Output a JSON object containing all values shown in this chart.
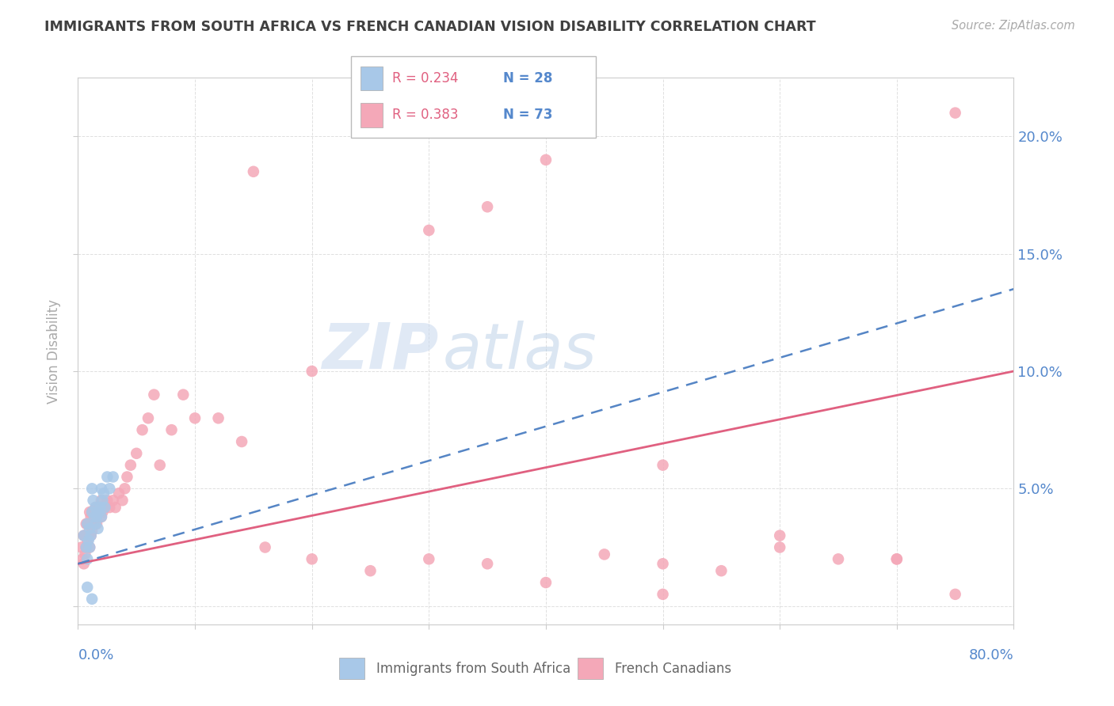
{
  "title": "IMMIGRANTS FROM SOUTH AFRICA VS FRENCH CANADIAN VISION DISABILITY CORRELATION CHART",
  "source": "Source: ZipAtlas.com",
  "ylabel": "Vision Disability",
  "xmin": 0.0,
  "xmax": 0.8,
  "ymin": -0.008,
  "ymax": 0.225,
  "yticks": [
    0.0,
    0.05,
    0.1,
    0.15,
    0.2
  ],
  "ytick_labels": [
    "",
    "5.0%",
    "10.0%",
    "15.0%",
    "20.0%"
  ],
  "legend_1_r": "R = 0.234",
  "legend_1_n": "N = 28",
  "legend_2_r": "R = 0.383",
  "legend_2_n": "N = 73",
  "legend_label_1": "Immigrants from South Africa",
  "legend_label_2": "French Canadians",
  "blue_scatter_color": "#A8C8E8",
  "pink_scatter_color": "#F4A8B8",
  "blue_line_color": "#5585C5",
  "pink_line_color": "#E06080",
  "axis_label_color": "#5588CC",
  "title_color": "#404040",
  "watermark_zip_color": "#C0D4EC",
  "watermark_atlas_color": "#A8C8E4",
  "blue_trend_x0": 0.0,
  "blue_trend_y0": 0.018,
  "blue_trend_x1": 0.8,
  "blue_trend_y1": 0.135,
  "pink_trend_x0": 0.0,
  "pink_trend_y0": 0.018,
  "pink_trend_x1": 0.8,
  "pink_trend_y1": 0.1,
  "blue_x": [
    0.005,
    0.007,
    0.008,
    0.008,
    0.009,
    0.01,
    0.01,
    0.011,
    0.012,
    0.012,
    0.013,
    0.014,
    0.015,
    0.015,
    0.016,
    0.017,
    0.018,
    0.019,
    0.02,
    0.02,
    0.021,
    0.022,
    0.023,
    0.025,
    0.027,
    0.03,
    0.008,
    0.012
  ],
  "blue_y": [
    0.03,
    0.025,
    0.035,
    0.02,
    0.028,
    0.033,
    0.025,
    0.03,
    0.05,
    0.04,
    0.045,
    0.038,
    0.042,
    0.035,
    0.038,
    0.033,
    0.04,
    0.042,
    0.05,
    0.038,
    0.045,
    0.048,
    0.042,
    0.055,
    0.05,
    0.055,
    0.008,
    0.003
  ],
  "pink_x": [
    0.003,
    0.004,
    0.005,
    0.005,
    0.006,
    0.006,
    0.007,
    0.007,
    0.008,
    0.008,
    0.009,
    0.009,
    0.01,
    0.01,
    0.011,
    0.011,
    0.012,
    0.012,
    0.013,
    0.014,
    0.015,
    0.015,
    0.016,
    0.017,
    0.018,
    0.019,
    0.02,
    0.02,
    0.021,
    0.022,
    0.023,
    0.025,
    0.027,
    0.03,
    0.032,
    0.035,
    0.038,
    0.04,
    0.042,
    0.045,
    0.05,
    0.055,
    0.06,
    0.065,
    0.07,
    0.08,
    0.09,
    0.1,
    0.12,
    0.14,
    0.16,
    0.2,
    0.25,
    0.3,
    0.35,
    0.4,
    0.45,
    0.5,
    0.55,
    0.6,
    0.65,
    0.7,
    0.75,
    0.35,
    0.4,
    0.5,
    0.6,
    0.7,
    0.15,
    0.2,
    0.3,
    0.5,
    0.75
  ],
  "pink_y": [
    0.025,
    0.02,
    0.018,
    0.03,
    0.022,
    0.03,
    0.025,
    0.035,
    0.028,
    0.035,
    0.03,
    0.035,
    0.025,
    0.04,
    0.03,
    0.038,
    0.032,
    0.04,
    0.035,
    0.04,
    0.038,
    0.042,
    0.035,
    0.042,
    0.04,
    0.042,
    0.038,
    0.045,
    0.04,
    0.042,
    0.042,
    0.045,
    0.042,
    0.045,
    0.042,
    0.048,
    0.045,
    0.05,
    0.055,
    0.06,
    0.065,
    0.075,
    0.08,
    0.09,
    0.06,
    0.075,
    0.09,
    0.08,
    0.08,
    0.07,
    0.025,
    0.02,
    0.015,
    0.02,
    0.018,
    0.01,
    0.022,
    0.018,
    0.015,
    0.025,
    0.02,
    0.02,
    0.005,
    0.17,
    0.19,
    0.06,
    0.03,
    0.02,
    0.185,
    0.1,
    0.16,
    0.005,
    0.21
  ]
}
